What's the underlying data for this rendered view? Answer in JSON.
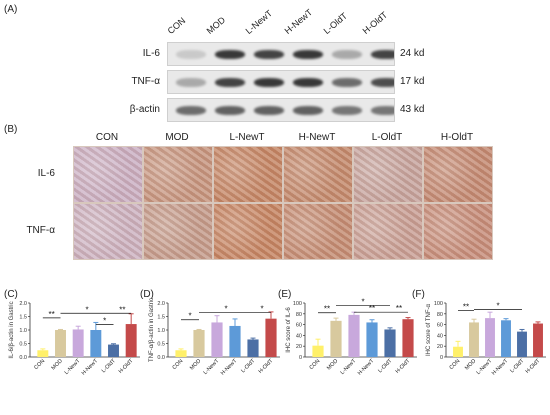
{
  "panel_a": {
    "letter": "(A)",
    "lanes": [
      "CON",
      "MOD",
      "L-NewT",
      "H-NewT",
      "L-OldT",
      "H-OldT"
    ],
    "blots": [
      {
        "protein": "IL-6",
        "kd": "24 kd",
        "intensity": [
          0.15,
          0.85,
          0.8,
          0.85,
          0.3,
          0.8
        ]
      },
      {
        "protein": "TNF-α",
        "kd": "17 kd",
        "intensity": [
          0.3,
          0.8,
          0.85,
          0.85,
          0.6,
          0.75
        ]
      },
      {
        "protein": "β-actin",
        "kd": "43 kd",
        "intensity": [
          0.6,
          0.65,
          0.65,
          0.65,
          0.55,
          0.55
        ]
      }
    ]
  },
  "panel_b": {
    "letter": "(B)",
    "columns": [
      "CON",
      "MOD",
      "L-NewT",
      "H-NewT",
      "L-OldT",
      "H-OldT"
    ],
    "rows": [
      "IL-6",
      "TNF-α"
    ],
    "tissue_colors": {
      "IL-6": [
        "#cbb0c4",
        "#c79680",
        "#c58665",
        "#c48a6d",
        "#c7a59f",
        "#c48a73"
      ],
      "TNF-α": [
        "#cdb3c2",
        "#c59c8c",
        "#c68563",
        "#c58d74",
        "#c9a096",
        "#c78e7b"
      ]
    }
  },
  "chart_data": [
    {
      "letter": "(C)",
      "type": "bar",
      "categories": [
        "CON",
        "MOD",
        "L-NewT",
        "H-NewT",
        "L-OldT",
        "H-OldT"
      ],
      "values": [
        0.25,
        1.0,
        1.02,
        1.0,
        0.46,
        1.22
      ],
      "errors": [
        0.05,
        0.02,
        0.12,
        0.28,
        0.03,
        0.38
      ],
      "ylabel": "IL-6/β-actin in Gastric",
      "ylim": [
        0,
        2.0
      ],
      "yticks": [
        "0.0",
        "0.5",
        "1.0",
        "1.5",
        "2.0"
      ],
      "colors": [
        "#fff06a",
        "#d8c99e",
        "#c8a8dc",
        "#5d9ad8",
        "#4c6fa5",
        "#c44a4a"
      ],
      "significance": [
        {
          "from": 0,
          "to": 1,
          "label": "**",
          "y": 1.45
        },
        {
          "from": 1,
          "to": 4,
          "label": "*",
          "y": 1.62
        },
        {
          "from": 3,
          "to": 4,
          "label": "*",
          "y": 1.2
        },
        {
          "from": 4,
          "to": 5,
          "label": "**",
          "y": 1.62
        }
      ]
    },
    {
      "letter": "(D)",
      "type": "bar",
      "categories": [
        "CON",
        "MOD",
        "L-NewT",
        "H-NewT",
        "L-OldT",
        "H-OldT"
      ],
      "values": [
        0.25,
        1.0,
        1.28,
        1.15,
        0.65,
        1.42
      ],
      "errors": [
        0.05,
        0.02,
        0.25,
        0.26,
        0.05,
        0.25
      ],
      "ylabel": "TNF-α/β-actin in Gastric",
      "ylim": [
        0,
        2.0
      ],
      "yticks": [
        "0.0",
        "0.5",
        "1.0",
        "1.5",
        "2.0"
      ],
      "colors": [
        "#fff06a",
        "#d8c99e",
        "#c8a8dc",
        "#5d9ad8",
        "#4c6fa5",
        "#c44a4a"
      ],
      "significance": [
        {
          "from": 0,
          "to": 1,
          "label": "*",
          "y": 1.38
        },
        {
          "from": 1,
          "to": 4,
          "label": "*",
          "y": 1.65
        },
        {
          "from": 4,
          "to": 5,
          "label": "*",
          "y": 1.65
        }
      ]
    },
    {
      "letter": "(E)",
      "type": "bar",
      "categories": [
        "CON",
        "MOD",
        "L-NewT",
        "H-NewT",
        "L-OldT",
        "H-OldT"
      ],
      "values": [
        21,
        67,
        78,
        64,
        51,
        70
      ],
      "errors": [
        12,
        5,
        5,
        5,
        3,
        3
      ],
      "ylabel": "IHC score of IL-6",
      "ylim": [
        0,
        100
      ],
      "yticks": [
        "0",
        "20",
        "40",
        "60",
        "80",
        "100"
      ],
      "colors": [
        "#fff06a",
        "#d8c99e",
        "#c8a8dc",
        "#5d9ad8",
        "#4c6fa5",
        "#c44a4a"
      ],
      "significance": [
        {
          "from": 0,
          "to": 1,
          "label": "**",
          "y": 82
        },
        {
          "from": 1,
          "to": 4,
          "label": "*",
          "y": 95
        },
        {
          "from": 2,
          "to": 4,
          "label": "**",
          "y": 83
        },
        {
          "from": 4,
          "to": 5,
          "label": "**",
          "y": 83
        }
      ]
    },
    {
      "letter": "(F)",
      "type": "bar",
      "categories": [
        "CON",
        "MOD",
        "L-NewT",
        "H-NewT",
        "L-OldT",
        "H-OldT"
      ],
      "values": [
        19,
        64,
        72,
        68,
        47,
        62
      ],
      "errors": [
        10,
        6,
        11,
        3,
        4,
        3
      ],
      "ylabel": "IHC score of TNF-α",
      "ylim": [
        0,
        100
      ],
      "yticks": [
        "0",
        "20",
        "40",
        "60",
        "80",
        "100"
      ],
      "colors": [
        "#fff06a",
        "#d8c99e",
        "#c8a8dc",
        "#5d9ad8",
        "#4c6fa5",
        "#c44a4a"
      ],
      "significance": [
        {
          "from": 0,
          "to": 1,
          "label": "**",
          "y": 86
        },
        {
          "from": 1,
          "to": 4,
          "label": "*",
          "y": 88
        }
      ]
    }
  ]
}
